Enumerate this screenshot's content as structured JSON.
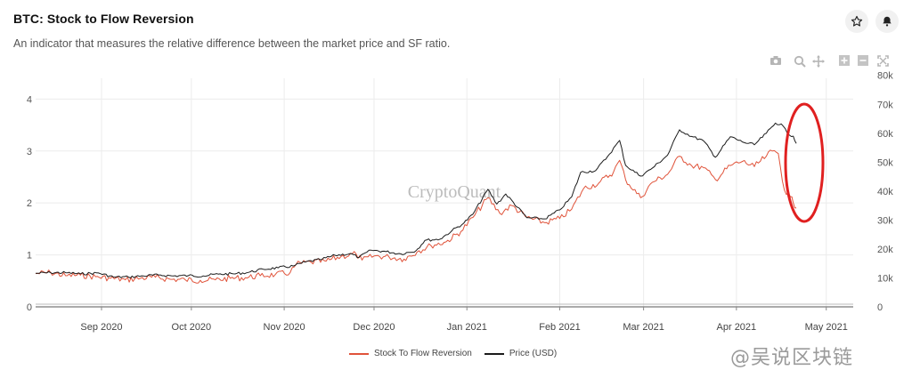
{
  "header": {
    "title": "BTC: Stock to Flow Reversion",
    "subtitle": "An indicator that measures the relative difference between the market price and SF ratio."
  },
  "icons": {
    "favorite": "star-icon",
    "notify": "bell-icon",
    "modebar": [
      "camera-icon",
      "zoom-icon",
      "pan-icon",
      "zoom-in-icon",
      "zoom-out-icon",
      "autoscale-icon"
    ]
  },
  "watermarks": {
    "center": "CryptoQuant",
    "corner": "@吴说区块链"
  },
  "colors": {
    "reversion": "#e0533a",
    "price": "#1b1b1b",
    "grid": "#ececec",
    "annotation": "#e02020"
  },
  "chart_data": {
    "type": "line",
    "title": "BTC: Stock to Flow Reversion",
    "x_range": [
      "2020-08-10",
      "2021-05-10"
    ],
    "x_ticks": [
      {
        "date": "2020-09-01",
        "label": "Sep 2020"
      },
      {
        "date": "2020-10-01",
        "label": "Oct 2020"
      },
      {
        "date": "2020-11-01",
        "label": "Nov 2020"
      },
      {
        "date": "2020-12-01",
        "label": "Dec 2020"
      },
      {
        "date": "2021-01-01",
        "label": "Jan 2021"
      },
      {
        "date": "2021-02-01",
        "label": "Feb 2021"
      },
      {
        "date": "2021-03-01",
        "label": "Mar 2021"
      },
      {
        "date": "2021-04-01",
        "label": "Apr 2021"
      },
      {
        "date": "2021-05-01",
        "label": "May 2021"
      }
    ],
    "y_left": {
      "range": [
        0,
        4.4
      ],
      "ticks": [
        0,
        1,
        2,
        3,
        4
      ],
      "labels": [
        "0",
        "1",
        "2",
        "3",
        "4"
      ]
    },
    "y_right": {
      "range": [
        0,
        79000
      ],
      "ticks": [
        0,
        10000,
        20000,
        30000,
        40000,
        50000,
        60000,
        70000,
        80000
      ],
      "labels": [
        "0",
        "10k",
        "20k",
        "30k",
        "40k",
        "50k",
        "60k",
        "70k",
        "80k"
      ]
    },
    "series": [
      {
        "name": "Stock To Flow Reversion",
        "axis": "left",
        "points": [
          [
            "2020-08-10",
            0.64
          ],
          [
            "2020-08-15",
            0.66
          ],
          [
            "2020-08-20",
            0.6
          ],
          [
            "2020-08-25",
            0.61
          ],
          [
            "2020-08-30",
            0.58
          ],
          [
            "2020-09-04",
            0.55
          ],
          [
            "2020-09-09",
            0.52
          ],
          [
            "2020-09-14",
            0.55
          ],
          [
            "2020-09-19",
            0.57
          ],
          [
            "2020-09-24",
            0.53
          ],
          [
            "2020-09-29",
            0.52
          ],
          [
            "2020-10-04",
            0.51
          ],
          [
            "2020-10-09",
            0.52
          ],
          [
            "2020-10-14",
            0.55
          ],
          [
            "2020-10-19",
            0.56
          ],
          [
            "2020-10-24",
            0.6
          ],
          [
            "2020-10-29",
            0.62
          ],
          [
            "2020-11-03",
            0.66
          ],
          [
            "2020-11-05",
            0.82
          ],
          [
            "2020-11-10",
            0.86
          ],
          [
            "2020-11-15",
            0.88
          ],
          [
            "2020-11-20",
            0.97
          ],
          [
            "2020-11-25",
            1.02
          ],
          [
            "2020-11-27",
            0.9
          ],
          [
            "2020-12-01",
            0.98
          ],
          [
            "2020-12-06",
            0.96
          ],
          [
            "2020-12-11",
            0.92
          ],
          [
            "2020-12-16",
            1.08
          ],
          [
            "2020-12-20",
            1.18
          ],
          [
            "2020-12-25",
            1.25
          ],
          [
            "2020-12-30",
            1.45
          ],
          [
            "2021-01-03",
            1.72
          ],
          [
            "2021-01-08",
            2.1
          ],
          [
            "2021-01-12",
            1.8
          ],
          [
            "2021-01-16",
            1.95
          ],
          [
            "2021-01-21",
            1.72
          ],
          [
            "2021-01-27",
            1.62
          ],
          [
            "2021-02-01",
            1.7
          ],
          [
            "2021-02-05",
            1.88
          ],
          [
            "2021-02-09",
            2.28
          ],
          [
            "2021-02-14",
            2.38
          ],
          [
            "2021-02-19",
            2.6
          ],
          [
            "2021-02-21",
            2.82
          ],
          [
            "2021-02-23",
            2.45
          ],
          [
            "2021-02-28",
            2.1
          ],
          [
            "2021-03-04",
            2.4
          ],
          [
            "2021-03-09",
            2.55
          ],
          [
            "2021-03-13",
            2.9
          ],
          [
            "2021-03-17",
            2.72
          ],
          [
            "2021-03-21",
            2.68
          ],
          [
            "2021-03-25",
            2.45
          ],
          [
            "2021-03-30",
            2.72
          ],
          [
            "2021-04-03",
            2.8
          ],
          [
            "2021-04-07",
            2.7
          ],
          [
            "2021-04-11",
            2.9
          ],
          [
            "2021-04-13",
            3.0
          ],
          [
            "2021-04-15",
            2.95
          ],
          [
            "2021-04-17",
            2.25
          ],
          [
            "2021-04-19",
            2.12
          ],
          [
            "2021-04-20",
            2.0
          ],
          [
            "2021-04-21",
            1.9
          ]
        ]
      },
      {
        "name": "Price (USD)",
        "axis": "right",
        "points": [
          [
            "2020-08-10",
            11600
          ],
          [
            "2020-08-15",
            11800
          ],
          [
            "2020-08-20",
            11800
          ],
          [
            "2020-08-25",
            11400
          ],
          [
            "2020-08-31",
            11700
          ],
          [
            "2020-09-05",
            10300
          ],
          [
            "2020-09-10",
            10300
          ],
          [
            "2020-09-15",
            10700
          ],
          [
            "2020-09-20",
            11000
          ],
          [
            "2020-09-25",
            10700
          ],
          [
            "2020-09-30",
            10800
          ],
          [
            "2020-10-05",
            10700
          ],
          [
            "2020-10-10",
            11300
          ],
          [
            "2020-10-15",
            11400
          ],
          [
            "2020-10-20",
            11900
          ],
          [
            "2020-10-25",
            13000
          ],
          [
            "2020-10-30",
            13500
          ],
          [
            "2020-11-04",
            14100
          ],
          [
            "2020-11-08",
            15500
          ],
          [
            "2020-11-13",
            16300
          ],
          [
            "2020-11-18",
            17800
          ],
          [
            "2020-11-23",
            18400
          ],
          [
            "2020-11-26",
            17100
          ],
          [
            "2020-11-30",
            19600
          ],
          [
            "2020-12-05",
            19100
          ],
          [
            "2020-12-10",
            18300
          ],
          [
            "2020-12-15",
            19400
          ],
          [
            "2020-12-18",
            23000
          ],
          [
            "2020-12-23",
            23400
          ],
          [
            "2020-12-27",
            26300
          ],
          [
            "2020-12-31",
            29000
          ],
          [
            "2021-01-03",
            32000
          ],
          [
            "2021-01-08",
            40600
          ],
          [
            "2021-01-11",
            35500
          ],
          [
            "2021-01-14",
            39000
          ],
          [
            "2021-01-21",
            30800
          ],
          [
            "2021-01-27",
            30400
          ],
          [
            "2021-02-01",
            33500
          ],
          [
            "2021-02-05",
            38000
          ],
          [
            "2021-02-08",
            46500
          ],
          [
            "2021-02-13",
            47100
          ],
          [
            "2021-02-17",
            52000
          ],
          [
            "2021-02-21",
            57500
          ],
          [
            "2021-02-23",
            48900
          ],
          [
            "2021-02-28",
            45200
          ],
          [
            "2021-03-04",
            48000
          ],
          [
            "2021-03-09",
            52400
          ],
          [
            "2021-03-13",
            61200
          ],
          [
            "2021-03-17",
            58900
          ],
          [
            "2021-03-21",
            57400
          ],
          [
            "2021-03-25",
            51700
          ],
          [
            "2021-03-30",
            58800
          ],
          [
            "2021-04-03",
            57000
          ],
          [
            "2021-04-07",
            56000
          ],
          [
            "2021-04-11",
            60000
          ],
          [
            "2021-04-14",
            63500
          ],
          [
            "2021-04-16",
            63200
          ],
          [
            "2021-04-18",
            60000
          ],
          [
            "2021-04-20",
            59000
          ],
          [
            "2021-04-21",
            56500
          ]
        ]
      }
    ],
    "legend": [
      "Stock To Flow Reversion",
      "Price (USD)"
    ],
    "legend_position": "bottom-center",
    "annotation": {
      "type": "ellipse",
      "around": "2021-04-10 to 2021-04-22 spike and drop"
    }
  }
}
